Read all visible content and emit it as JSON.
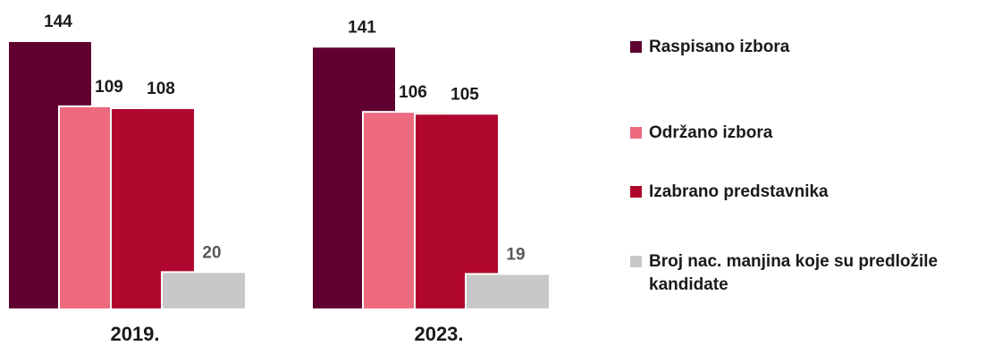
{
  "chart_data": {
    "type": "bar",
    "categories": [
      "2019.",
      "2023."
    ],
    "series": [
      {
        "name": "Raspisano izbora",
        "values": [
          144,
          141
        ],
        "color": "#600030"
      },
      {
        "name": "Održano izbora",
        "values": [
          109,
          106
        ],
        "color": "#ee6a7e"
      },
      {
        "name": "Izabrano predstavnika",
        "values": [
          108,
          105
        ],
        "color": "#b0072e"
      },
      {
        "name": "Broj nac. manjina koje su predložile kandidate",
        "values": [
          20,
          19
        ],
        "color": "#c8c8c8"
      }
    ],
    "value_label_colors": [
      "#1a1a1a",
      "#1a1a1a",
      "#1a1a1a",
      "#595959"
    ],
    "title": "",
    "xlabel": "",
    "ylabel": "",
    "ylim": [
      0,
      144
    ],
    "grid": false,
    "legend_position": "right"
  }
}
